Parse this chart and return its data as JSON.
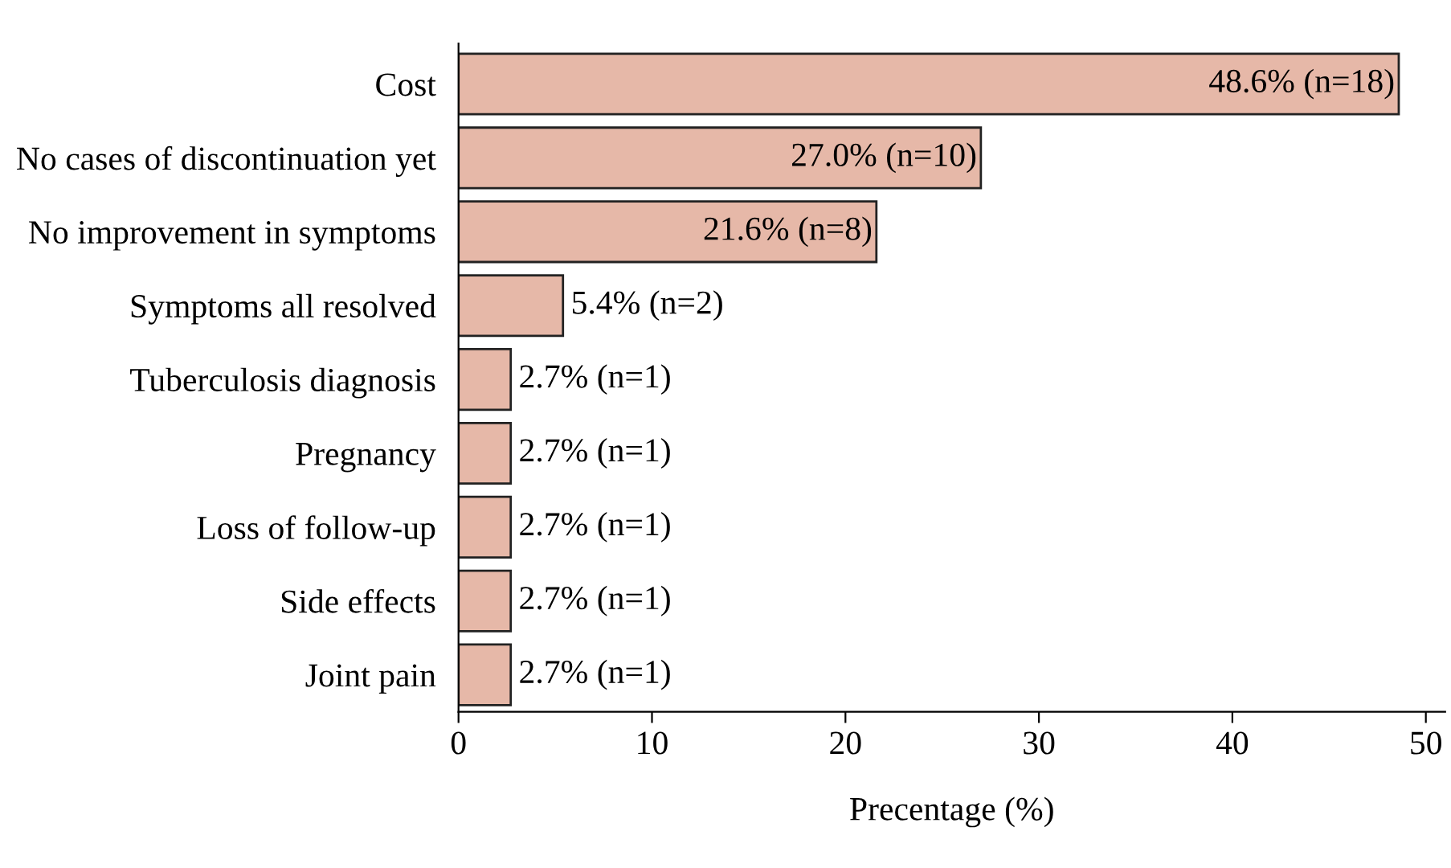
{
  "chart_data": {
    "type": "bar",
    "orientation": "horizontal",
    "xlabel": "Precentage (%)",
    "categories": [
      "Cost",
      "No cases of discontinuation yet",
      "No improvement in symptoms",
      "Symptoms all resolved",
      "Tuberculosis diagnosis",
      "Pregnancy",
      "Loss of follow-up",
      "Side effects",
      "Joint pain"
    ],
    "values": [
      48.6,
      27.0,
      21.6,
      5.4,
      2.7,
      2.7,
      2.7,
      2.7,
      2.7
    ],
    "value_labels": [
      "48.6% (n=18)",
      "27.0% (n=10)",
      "21.6% (n=8)",
      "5.4% (n=2)",
      "2.7% (n=1)",
      "2.7% (n=1)",
      "2.7% (n=1)",
      "2.7% (n=1)",
      "2.7% (n=1)"
    ],
    "color": "#e6b8a8",
    "xlim": [
      0,
      51
    ],
    "xticks": [
      0,
      10,
      20,
      30,
      40,
      50
    ],
    "grid": false,
    "legend": false
  }
}
